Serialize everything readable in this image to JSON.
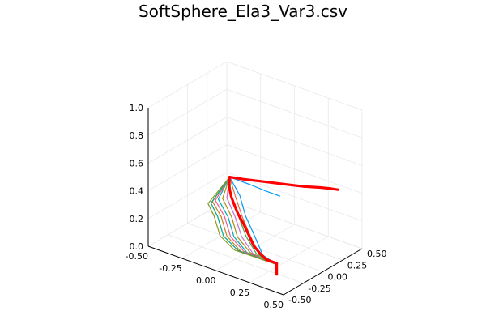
{
  "chart_data": {
    "type": "line",
    "title": "SoftSphere_Ela3_Var3.csv",
    "projection": "3d",
    "legend": "none",
    "grid": true,
    "xlim": [
      -0.5,
      0.5
    ],
    "ylim": [
      -0.5,
      0.5
    ],
    "zlim": [
      0.0,
      1.0
    ],
    "x_ticks": [
      "-0.50",
      "-0.25",
      "0.00",
      "0.25",
      "0.50"
    ],
    "y_ticks": [
      "-0.50",
      "-0.25",
      "0.00",
      "0.25",
      "0.50"
    ],
    "z_ticks": [
      "0.0",
      "0.2",
      "0.4",
      "0.6",
      "0.8",
      "1.0"
    ],
    "colors": {
      "highlight": "#ff0000",
      "palette": [
        "#009af9",
        "#e26f46",
        "#3da44d",
        "#c271d2",
        "#ac8d18",
        "#00a9ad",
        "#ed5e93",
        "#c68225",
        "#00a98d",
        "#8e971e"
      ],
      "grid": "#e6e6e6",
      "axis": "#000000"
    },
    "series": [
      {
        "role": "highlight",
        "x": [
          -0.45,
          -0.38,
          -0.28,
          -0.18,
          -0.08,
          0.02,
          0.12,
          0.2,
          0.28,
          0.36,
          0.42,
          0.45
        ],
        "y": [
          0.45,
          0.32,
          0.18,
          0.05,
          -0.08,
          -0.18,
          -0.28,
          -0.36,
          -0.42,
          -0.48,
          -0.5,
          -0.5
        ],
        "z": [
          0.2,
          0.2,
          0.205,
          0.22,
          0.24,
          0.235,
          0.215,
          0.2,
          0.195,
          0.2,
          0.21,
          0.21
        ]
      },
      {
        "role": "highlight",
        "x": [
          -0.45,
          -0.35,
          -0.2,
          -0.05,
          0.1,
          0.22,
          0.3,
          0.35
        ],
        "y": [
          0.45,
          0.45,
          0.45,
          0.45,
          0.45,
          0.45,
          0.45,
          0.45
        ],
        "z": [
          0.2,
          0.22,
          0.255,
          0.29,
          0.325,
          0.36,
          0.38,
          0.39
        ]
      },
      {
        "role": "highlight",
        "x": [
          0.45,
          0.45
        ],
        "y": [
          -0.5,
          -0.5
        ],
        "z": [
          0.21,
          0.13
        ]
      },
      {
        "role": "bundle",
        "x": [
          -0.45,
          -0.3,
          -0.1,
          0.1,
          0.3,
          0.45
        ],
        "y": [
          0.45,
          0.32,
          0.05,
          -0.18,
          -0.42,
          -0.5
        ],
        "z": [
          0.2,
          0.165,
          0.175,
          0.18,
          0.19,
          0.2
        ]
      },
      {
        "role": "bundle",
        "x": [
          -0.45,
          -0.32,
          -0.12,
          0.08,
          0.28,
          0.44
        ],
        "y": [
          0.45,
          0.3,
          0.04,
          -0.2,
          -0.43,
          -0.5
        ],
        "z": [
          0.2,
          0.155,
          0.17,
          0.178,
          0.19,
          0.2
        ]
      },
      {
        "role": "bundle",
        "x": [
          -0.45,
          -0.34,
          -0.14,
          0.06,
          0.26,
          0.43
        ],
        "y": [
          0.45,
          0.28,
          0.03,
          -0.22,
          -0.43,
          -0.5
        ],
        "z": [
          0.2,
          0.15,
          0.165,
          0.175,
          0.188,
          0.2
        ]
      },
      {
        "role": "bundle",
        "x": [
          -0.45,
          -0.36,
          -0.16,
          0.04,
          0.24,
          0.42
        ],
        "y": [
          0.45,
          0.26,
          0.02,
          -0.24,
          -0.44,
          -0.5
        ],
        "z": [
          0.2,
          0.145,
          0.16,
          0.172,
          0.186,
          0.2
        ]
      },
      {
        "role": "bundle",
        "x": [
          -0.45,
          -0.38,
          -0.18,
          0.02,
          0.22,
          0.41
        ],
        "y": [
          0.45,
          0.24,
          0.01,
          -0.26,
          -0.44,
          -0.5
        ],
        "z": [
          0.2,
          0.14,
          0.155,
          0.17,
          0.185,
          0.2
        ]
      },
      {
        "role": "bundle",
        "x": [
          -0.45,
          -0.4,
          -0.2,
          0.0,
          0.2,
          0.4
        ],
        "y": [
          0.45,
          0.22,
          0.0,
          -0.27,
          -0.45,
          -0.5
        ],
        "z": [
          0.2,
          0.135,
          0.15,
          0.168,
          0.184,
          0.2
        ]
      },
      {
        "role": "bundle",
        "x": [
          -0.45,
          -0.41,
          -0.22,
          -0.02,
          0.18,
          0.39
        ],
        "y": [
          0.45,
          0.2,
          -0.01,
          -0.28,
          -0.45,
          -0.5
        ],
        "z": [
          0.2,
          0.13,
          0.148,
          0.166,
          0.183,
          0.2
        ]
      },
      {
        "role": "bundle",
        "x": [
          -0.45,
          -0.42,
          -0.24,
          -0.04,
          0.16,
          0.38
        ],
        "y": [
          0.45,
          0.18,
          -0.02,
          -0.29,
          -0.46,
          -0.5
        ],
        "z": [
          0.2,
          0.125,
          0.145,
          0.164,
          0.182,
          0.2
        ]
      },
      {
        "role": "bundle",
        "x": [
          -0.45,
          -0.42,
          -0.26,
          -0.06,
          0.14,
          0.37
        ],
        "y": [
          0.45,
          0.16,
          -0.03,
          -0.3,
          -0.46,
          -0.5
        ],
        "z": [
          0.2,
          0.12,
          0.142,
          0.162,
          0.181,
          0.2
        ]
      },
      {
        "role": "bundle",
        "x": [
          -0.45,
          -0.43,
          -0.28,
          -0.08,
          0.12,
          0.36
        ],
        "y": [
          0.45,
          0.14,
          -0.04,
          -0.31,
          -0.47,
          -0.5
        ],
        "z": [
          0.2,
          0.12,
          0.14,
          0.16,
          0.18,
          0.2
        ]
      },
      {
        "role": "bundle",
        "x": [
          -0.45,
          -0.28,
          -0.15,
          -0.05
        ],
        "y": [
          0.45,
          0.42,
          0.4,
          0.4
        ],
        "z": [
          0.2,
          0.215,
          0.22,
          0.22
        ]
      }
    ]
  }
}
